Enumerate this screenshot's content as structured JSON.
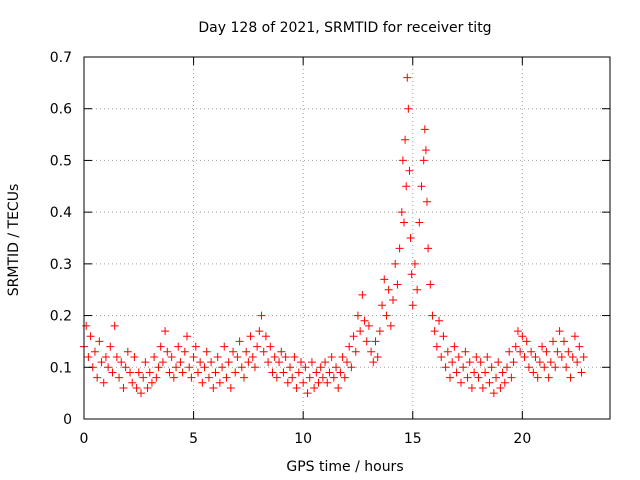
{
  "chart_data": {
    "type": "scatter",
    "title": "Day 128 of 2021, SRMTID for receiver titg",
    "xlabel": "GPS time / hours",
    "ylabel": "SRMTID / TECUs",
    "xlim": [
      0,
      24
    ],
    "ylim": [
      0,
      0.7
    ],
    "xticks": [
      0,
      5,
      10,
      15,
      20
    ],
    "yticks": [
      0,
      0.1,
      0.2,
      0.3,
      0.4,
      0.5,
      0.6,
      0.7
    ],
    "grid": true,
    "marker": "+",
    "color": "#ff0000",
    "series": [
      {
        "name": "SRMTID",
        "points": [
          [
            0.0,
            0.14
          ],
          [
            0.1,
            0.18
          ],
          [
            0.2,
            0.12
          ],
          [
            0.3,
            0.16
          ],
          [
            0.4,
            0.1
          ],
          [
            0.5,
            0.13
          ],
          [
            0.6,
            0.08
          ],
          [
            0.7,
            0.15
          ],
          [
            0.8,
            0.11
          ],
          [
            0.9,
            0.07
          ],
          [
            1.0,
            0.12
          ],
          [
            1.1,
            0.1
          ],
          [
            1.2,
            0.14
          ],
          [
            1.3,
            0.09
          ],
          [
            1.4,
            0.18
          ],
          [
            1.5,
            0.12
          ],
          [
            1.6,
            0.08
          ],
          [
            1.7,
            0.11
          ],
          [
            1.8,
            0.06
          ],
          [
            1.9,
            0.1
          ],
          [
            2.0,
            0.13
          ],
          [
            2.1,
            0.09
          ],
          [
            2.2,
            0.07
          ],
          [
            2.3,
            0.12
          ],
          [
            2.4,
            0.06
          ],
          [
            2.5,
            0.09
          ],
          [
            2.6,
            0.05
          ],
          [
            2.7,
            0.08
          ],
          [
            2.8,
            0.11
          ],
          [
            2.9,
            0.06
          ],
          [
            3.0,
            0.09
          ],
          [
            3.1,
            0.07
          ],
          [
            3.2,
            0.12
          ],
          [
            3.3,
            0.08
          ],
          [
            3.4,
            0.1
          ],
          [
            3.5,
            0.14
          ],
          [
            3.6,
            0.11
          ],
          [
            3.7,
            0.17
          ],
          [
            3.8,
            0.13
          ],
          [
            3.9,
            0.09
          ],
          [
            4.0,
            0.12
          ],
          [
            4.1,
            0.08
          ],
          [
            4.2,
            0.1
          ],
          [
            4.3,
            0.14
          ],
          [
            4.4,
            0.11
          ],
          [
            4.5,
            0.09
          ],
          [
            4.6,
            0.13
          ],
          [
            4.7,
            0.16
          ],
          [
            4.8,
            0.1
          ],
          [
            4.9,
            0.08
          ],
          [
            5.0,
            0.12
          ],
          [
            5.1,
            0.14
          ],
          [
            5.2,
            0.09
          ],
          [
            5.3,
            0.11
          ],
          [
            5.4,
            0.07
          ],
          [
            5.5,
            0.1
          ],
          [
            5.6,
            0.13
          ],
          [
            5.7,
            0.08
          ],
          [
            5.8,
            0.11
          ],
          [
            5.9,
            0.06
          ],
          [
            6.0,
            0.09
          ],
          [
            6.1,
            0.12
          ],
          [
            6.2,
            0.07
          ],
          [
            6.3,
            0.1
          ],
          [
            6.4,
            0.14
          ],
          [
            6.5,
            0.08
          ],
          [
            6.6,
            0.11
          ],
          [
            6.7,
            0.06
          ],
          [
            6.8,
            0.13
          ],
          [
            6.9,
            0.09
          ],
          [
            7.0,
            0.12
          ],
          [
            7.1,
            0.15
          ],
          [
            7.2,
            0.1
          ],
          [
            7.3,
            0.08
          ],
          [
            7.4,
            0.13
          ],
          [
            7.5,
            0.11
          ],
          [
            7.6,
            0.16
          ],
          [
            7.7,
            0.12
          ],
          [
            7.8,
            0.1
          ],
          [
            7.9,
            0.14
          ],
          [
            8.0,
            0.17
          ],
          [
            8.1,
            0.2
          ],
          [
            8.2,
            0.13
          ],
          [
            8.3,
            0.16
          ],
          [
            8.4,
            0.11
          ],
          [
            8.5,
            0.14
          ],
          [
            8.6,
            0.09
          ],
          [
            8.7,
            0.12
          ],
          [
            8.8,
            0.08
          ],
          [
            8.9,
            0.11
          ],
          [
            9.0,
            0.13
          ],
          [
            9.1,
            0.09
          ],
          [
            9.2,
            0.12
          ],
          [
            9.3,
            0.07
          ],
          [
            9.4,
            0.1
          ],
          [
            9.5,
            0.08
          ],
          [
            9.6,
            0.12
          ],
          [
            9.7,
            0.06
          ],
          [
            9.8,
            0.09
          ],
          [
            9.9,
            0.11
          ],
          [
            10.0,
            0.07
          ],
          [
            10.1,
            0.1
          ],
          [
            10.2,
            0.05
          ],
          [
            10.3,
            0.08
          ],
          [
            10.4,
            0.11
          ],
          [
            10.5,
            0.06
          ],
          [
            10.6,
            0.09
          ],
          [
            10.7,
            0.07
          ],
          [
            10.8,
            0.1
          ],
          [
            10.9,
            0.08
          ],
          [
            11.0,
            0.11
          ],
          [
            11.1,
            0.07
          ],
          [
            11.2,
            0.09
          ],
          [
            11.3,
            0.12
          ],
          [
            11.4,
            0.08
          ],
          [
            11.5,
            0.1
          ],
          [
            11.6,
            0.06
          ],
          [
            11.7,
            0.09
          ],
          [
            11.8,
            0.12
          ],
          [
            11.9,
            0.08
          ],
          [
            12.0,
            0.11
          ],
          [
            12.1,
            0.14
          ],
          [
            12.2,
            0.1
          ],
          [
            12.3,
            0.16
          ],
          [
            12.4,
            0.13
          ],
          [
            12.5,
            0.2
          ],
          [
            12.6,
            0.17
          ],
          [
            12.7,
            0.24
          ],
          [
            12.8,
            0.19
          ],
          [
            12.9,
            0.15
          ],
          [
            13.0,
            0.18
          ],
          [
            13.1,
            0.13
          ],
          [
            13.2,
            0.11
          ],
          [
            13.3,
            0.15
          ],
          [
            13.4,
            0.12
          ],
          [
            13.5,
            0.17
          ],
          [
            13.6,
            0.22
          ],
          [
            13.7,
            0.27
          ],
          [
            13.8,
            0.2
          ],
          [
            13.9,
            0.25
          ],
          [
            14.0,
            0.18
          ],
          [
            14.1,
            0.23
          ],
          [
            14.2,
            0.3
          ],
          [
            14.3,
            0.26
          ],
          [
            14.4,
            0.33
          ],
          [
            14.5,
            0.4
          ],
          [
            14.55,
            0.5
          ],
          [
            14.6,
            0.38
          ],
          [
            14.65,
            0.54
          ],
          [
            14.7,
            0.45
          ],
          [
            14.75,
            0.66
          ],
          [
            14.8,
            0.6
          ],
          [
            14.85,
            0.48
          ],
          [
            14.9,
            0.35
          ],
          [
            14.95,
            0.28
          ],
          [
            15.0,
            0.22
          ],
          [
            15.1,
            0.3
          ],
          [
            15.2,
            0.25
          ],
          [
            15.3,
            0.38
          ],
          [
            15.4,
            0.45
          ],
          [
            15.5,
            0.5
          ],
          [
            15.55,
            0.56
          ],
          [
            15.6,
            0.52
          ],
          [
            15.65,
            0.42
          ],
          [
            15.7,
            0.33
          ],
          [
            15.8,
            0.26
          ],
          [
            15.9,
            0.2
          ],
          [
            16.0,
            0.17
          ],
          [
            16.1,
            0.14
          ],
          [
            16.2,
            0.19
          ],
          [
            16.3,
            0.12
          ],
          [
            16.4,
            0.16
          ],
          [
            16.5,
            0.1
          ],
          [
            16.6,
            0.13
          ],
          [
            16.7,
            0.08
          ],
          [
            16.8,
            0.11
          ],
          [
            16.9,
            0.14
          ],
          [
            17.0,
            0.09
          ],
          [
            17.1,
            0.12
          ],
          [
            17.2,
            0.07
          ],
          [
            17.3,
            0.1
          ],
          [
            17.4,
            0.13
          ],
          [
            17.5,
            0.08
          ],
          [
            17.6,
            0.11
          ],
          [
            17.7,
            0.06
          ],
          [
            17.8,
            0.09
          ],
          [
            17.9,
            0.12
          ],
          [
            18.0,
            0.08
          ],
          [
            18.1,
            0.11
          ],
          [
            18.2,
            0.06
          ],
          [
            18.3,
            0.09
          ],
          [
            18.4,
            0.12
          ],
          [
            18.5,
            0.07
          ],
          [
            18.6,
            0.1
          ],
          [
            18.7,
            0.05
          ],
          [
            18.8,
            0.08
          ],
          [
            18.9,
            0.11
          ],
          [
            19.0,
            0.06
          ],
          [
            19.1,
            0.09
          ],
          [
            19.2,
            0.07
          ],
          [
            19.3,
            0.1
          ],
          [
            19.4,
            0.13
          ],
          [
            19.5,
            0.08
          ],
          [
            19.6,
            0.11
          ],
          [
            19.7,
            0.14
          ],
          [
            19.8,
            0.17
          ],
          [
            19.9,
            0.13
          ],
          [
            20.0,
            0.16
          ],
          [
            20.1,
            0.12
          ],
          [
            20.2,
            0.15
          ],
          [
            20.3,
            0.1
          ],
          [
            20.4,
            0.13
          ],
          [
            20.5,
            0.09
          ],
          [
            20.6,
            0.12
          ],
          [
            20.7,
            0.08
          ],
          [
            20.8,
            0.11
          ],
          [
            20.9,
            0.14
          ],
          [
            21.0,
            0.1
          ],
          [
            21.1,
            0.13
          ],
          [
            21.2,
            0.08
          ],
          [
            21.3,
            0.11
          ],
          [
            21.4,
            0.15
          ],
          [
            21.5,
            0.1
          ],
          [
            21.6,
            0.13
          ],
          [
            21.7,
            0.17
          ],
          [
            21.8,
            0.12
          ],
          [
            21.9,
            0.15
          ],
          [
            22.0,
            0.1
          ],
          [
            22.1,
            0.13
          ],
          [
            22.2,
            0.08
          ],
          [
            22.3,
            0.12
          ],
          [
            22.4,
            0.16
          ],
          [
            22.5,
            0.11
          ],
          [
            22.6,
            0.14
          ],
          [
            22.7,
            0.09
          ],
          [
            22.8,
            0.12
          ]
        ]
      }
    ]
  }
}
